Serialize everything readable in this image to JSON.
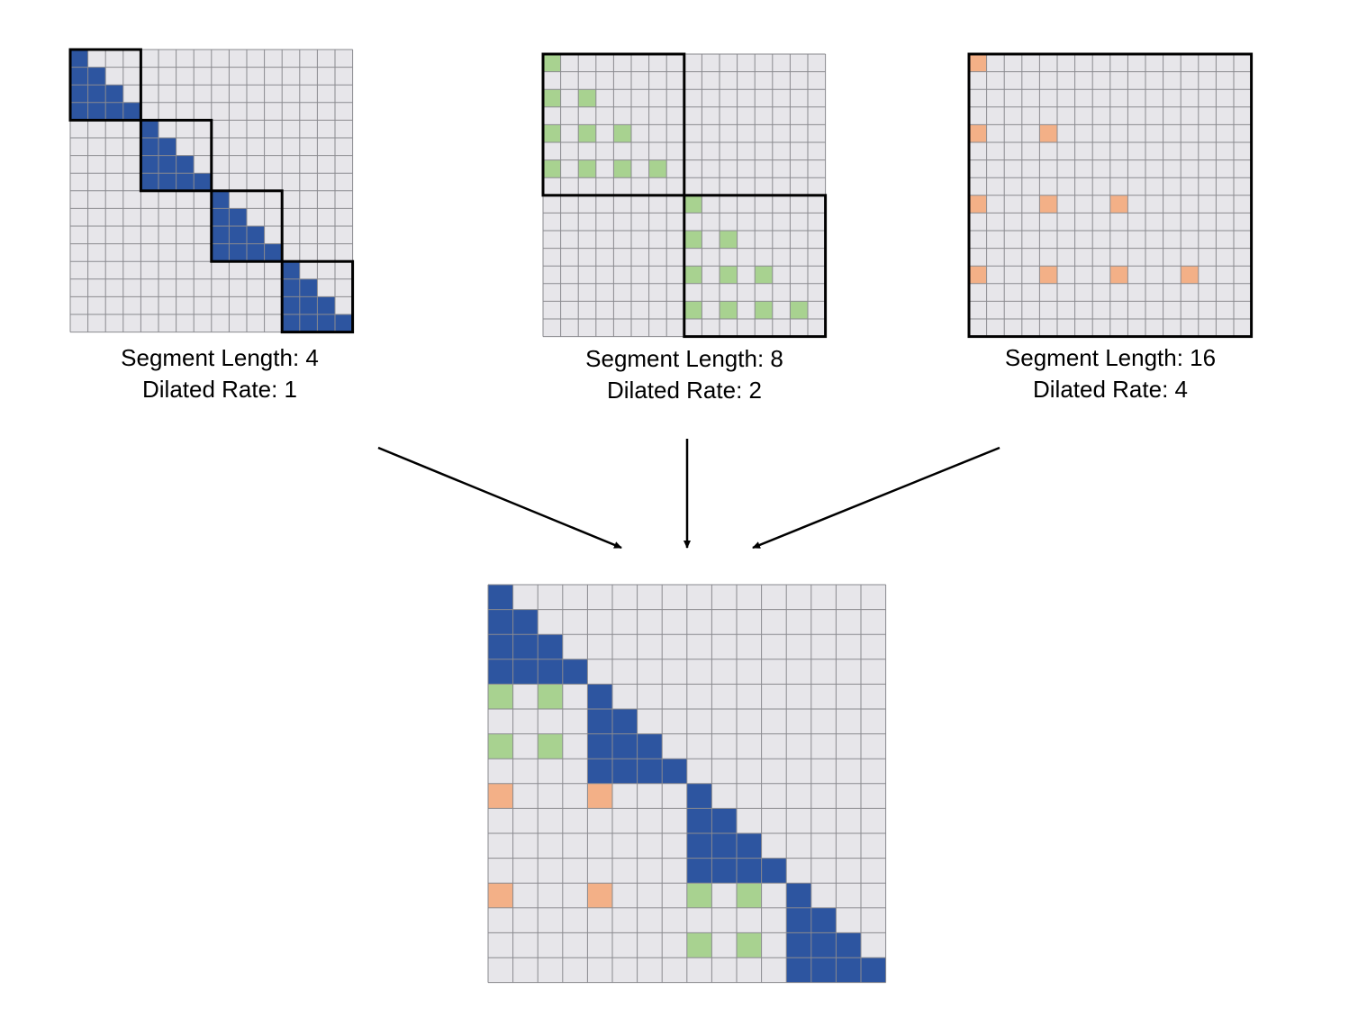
{
  "grid_size": 16,
  "colors": {
    "background_cell": "#e7e6ea",
    "grid_line": "#8a8a8f",
    "segment_border": "#000000",
    "arrow": "#000000",
    "rate1": "#2d55a0",
    "rate2": "#a8d290",
    "rate4": "#f3b087"
  },
  "patterns": [
    {
      "segment_label": "Segment Length: 4",
      "rate_label": "Dilated Rate: 1",
      "segment_length": 4,
      "dilation_rate": 1,
      "color_key": "rate1"
    },
    {
      "segment_label": "Segment Length: 8",
      "rate_label": "Dilated Rate: 2",
      "segment_length": 8,
      "dilation_rate": 2,
      "color_key": "rate2"
    },
    {
      "segment_label": "Segment Length: 16",
      "rate_label": "Dilated Rate: 4",
      "segment_length": 16,
      "dilation_rate": 4,
      "color_key": "rate4"
    }
  ],
  "combined_priority": [
    "rate1",
    "rate2",
    "rate4"
  ]
}
